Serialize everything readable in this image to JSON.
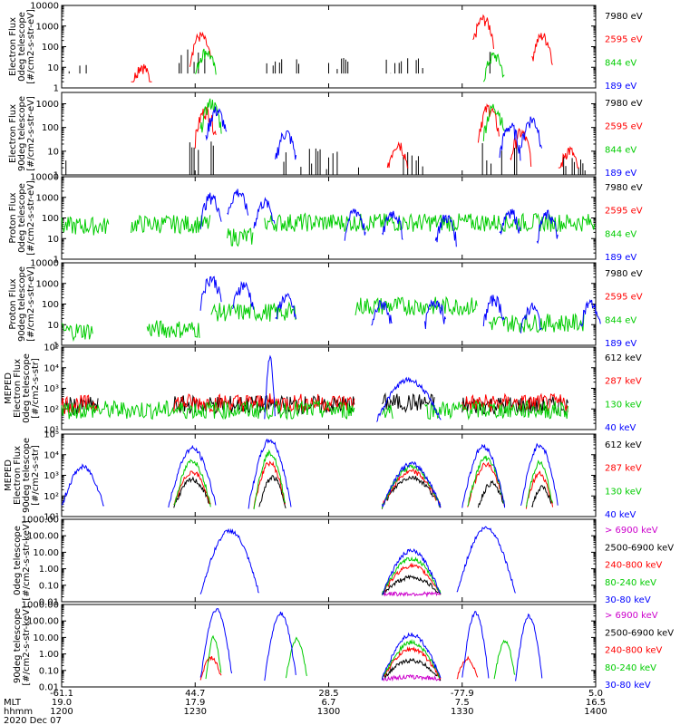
{
  "chart_data": [
    {
      "panel": "electron-0deg",
      "type": "line",
      "ylabel": [
        "Electron Flux",
        "0deg telescope",
        "[#/cm2-s-str-eV]"
      ],
      "yscale": "log",
      "ylim": [
        1,
        10000
      ],
      "yticks": [
        {
          "v": 1,
          "t": "1"
        },
        {
          "v": 10,
          "t": "10"
        },
        {
          "v": 100,
          "t": "100"
        },
        {
          "v": 1000,
          "t": "1000"
        },
        {
          "v": 10000,
          "t": "10000"
        }
      ],
      "series": [
        {
          "name": "7980 eV",
          "color": "#000000",
          "style": "sticks",
          "segments": [
            [
              0.01,
              0.06,
              12
            ],
            [
              0.22,
              0.28,
              70
            ],
            [
              0.38,
              0.46,
              30
            ],
            [
              0.5,
              0.55,
              25
            ],
            [
              0.6,
              0.68,
              25
            ],
            [
              0.79,
              0.82,
              60
            ]
          ],
          "base": 10
        },
        {
          "name": "2595 eV",
          "color": "#ff0000",
          "style": "bursts",
          "segments": [
            [
              0.15,
              16
            ],
            [
              0.26,
              450
            ],
            [
              0.79,
              3000
            ],
            [
              0.9,
              450
            ]
          ]
        },
        {
          "name": "844 eV",
          "color": "#00cc00",
          "style": "bursts",
          "segments": [
            [
              0.27,
              80
            ],
            [
              0.81,
              50
            ]
          ]
        },
        {
          "name": "189 eV",
          "color": "#0000ff",
          "style": "none",
          "segments": []
        }
      ]
    },
    {
      "panel": "electron-90deg",
      "type": "line",
      "ylabel": [
        "Electron Flux",
        "90deg telescope",
        "[#/cm2-s-str-eV]"
      ],
      "yscale": "log",
      "ylim": [
        1,
        3000
      ],
      "yticks": [
        {
          "v": 1,
          "t": "1"
        },
        {
          "v": 10,
          "t": "10"
        },
        {
          "v": 100,
          "t": "100"
        },
        {
          "v": 1000,
          "t": "1000"
        }
      ],
      "series": [
        {
          "name": "7980 eV",
          "color": "#000000",
          "style": "sticks",
          "segments": [
            [
              0.0,
              0.02,
              8
            ],
            [
              0.24,
              0.3,
              30
            ],
            [
              0.4,
              0.56,
              12
            ],
            [
              0.6,
              0.68,
              12
            ],
            [
              0.78,
              0.86,
              30
            ],
            [
              0.94,
              1.0,
              6
            ]
          ],
          "base": 2
        },
        {
          "name": "2595 eV",
          "color": "#ff0000",
          "style": "bursts",
          "segments": [
            [
              0.27,
              700
            ],
            [
              0.8,
              900
            ],
            [
              0.86,
              80
            ],
            [
              0.63,
              30
            ],
            [
              0.95,
              15
            ]
          ]
        },
        {
          "name": "844 eV",
          "color": "#00cc00",
          "style": "bursts",
          "segments": [
            [
              0.28,
              1500
            ],
            [
              0.81,
              1000
            ]
          ]
        },
        {
          "name": "189 eV",
          "color": "#0000ff",
          "style": "bursts",
          "segments": [
            [
              0.29,
              700
            ],
            [
              0.42,
              80
            ],
            [
              0.84,
              150
            ],
            [
              0.88,
              300
            ]
          ]
        }
      ]
    },
    {
      "panel": "proton-0deg",
      "type": "line",
      "ylabel": [
        "Proton Flux",
        "0deg telescope",
        "[#/cm2-s-str-eV]"
      ],
      "yscale": "log",
      "ylim": [
        1,
        10000
      ],
      "yticks": [
        {
          "v": 1,
          "t": "1"
        },
        {
          "v": 10,
          "t": "10"
        },
        {
          "v": 100,
          "t": "100"
        },
        {
          "v": 1000,
          "t": "1000"
        },
        {
          "v": 10000,
          "t": "10000"
        }
      ],
      "series": [
        {
          "name": "7980 eV",
          "color": "#000000",
          "style": "none",
          "segments": []
        },
        {
          "name": "2595 eV",
          "color": "#ff0000",
          "style": "none",
          "segments": []
        },
        {
          "name": "844 eV",
          "color": "#00cc00",
          "style": "noise",
          "segments": [
            [
              0.0,
              0.09,
              40
            ],
            [
              0.13,
              0.28,
              50
            ],
            [
              0.31,
              0.36,
              12
            ],
            [
              0.38,
              1.0,
              60
            ]
          ]
        },
        {
          "name": "189 eV",
          "color": "#0000ff",
          "style": "bursts",
          "segments": [
            [
              0.28,
              1500
            ],
            [
              0.33,
              2500
            ],
            [
              0.38,
              800
            ],
            [
              0.55,
              300
            ],
            [
              0.62,
              250
            ],
            [
              0.72,
              150
            ],
            [
              0.84,
              300
            ],
            [
              0.91,
              200
            ]
          ]
        }
      ]
    },
    {
      "panel": "proton-90deg",
      "type": "line",
      "ylabel": [
        "Proton Flux",
        "90deg telescope",
        "[#/cm2-s-str-eV]"
      ],
      "yscale": "log",
      "ylim": [
        1,
        10000
      ],
      "yticks": [
        {
          "v": 1,
          "t": "1"
        },
        {
          "v": 10,
          "t": "10"
        },
        {
          "v": 100,
          "t": "100"
        },
        {
          "v": 1000,
          "t": "1000"
        },
        {
          "v": 10000,
          "t": "10000"
        }
      ],
      "series": [
        {
          "name": "7980 eV",
          "color": "#000000",
          "style": "none",
          "segments": []
        },
        {
          "name": "2595 eV",
          "color": "#ff0000",
          "style": "none",
          "segments": []
        },
        {
          "name": "844 eV",
          "color": "#00cc00",
          "style": "noise",
          "segments": [
            [
              0.0,
              0.06,
              5
            ],
            [
              0.16,
              0.26,
              6
            ],
            [
              0.28,
              0.44,
              40
            ],
            [
              0.55,
              0.78,
              80
            ],
            [
              0.8,
              0.98,
              12
            ]
          ]
        },
        {
          "name": "189 eV",
          "color": "#0000ff",
          "style": "bursts",
          "segments": [
            [
              0.28,
              2500
            ],
            [
              0.34,
              1200
            ],
            [
              0.42,
              300
            ],
            [
              0.6,
              150
            ],
            [
              0.7,
              200
            ],
            [
              0.81,
              250
            ],
            [
              0.88,
              100
            ],
            [
              0.99,
              150
            ]
          ]
        }
      ]
    },
    {
      "panel": "meped-electron-0deg",
      "type": "line",
      "ylabel": [
        "MEPED",
        "Electron Flux",
        "0deg telescope",
        "[#/cm2-s-str]"
      ],
      "yscale": "log",
      "ylim": [
        10,
        100000
      ],
      "yticks": [
        {
          "v": 10,
          "t": "10¹"
        },
        {
          "v": 100,
          "t": "10²"
        },
        {
          "v": 1000,
          "t": "10³"
        },
        {
          "v": 10000,
          "t": "10⁴"
        },
        {
          "v": 100000,
          "t": "10⁵"
        }
      ],
      "series": [
        {
          "name": "612 keV",
          "color": "#000000",
          "style": "noise",
          "segments": [
            [
              0.0,
              0.07,
              140
            ],
            [
              0.21,
              0.55,
              160
            ],
            [
              0.6,
              0.7,
              200
            ],
            [
              0.75,
              0.95,
              150
            ]
          ]
        },
        {
          "name": "287 keV",
          "color": "#ff0000",
          "style": "noise",
          "segments": [
            [
              0.0,
              0.07,
              170
            ],
            [
              0.21,
              0.55,
              200
            ],
            [
              0.75,
              0.95,
              190
            ]
          ]
        },
        {
          "name": "130 keV",
          "color": "#00cc00",
          "style": "noise",
          "segments": [
            [
              0.0,
              0.55,
              90
            ],
            [
              0.6,
              0.62,
              90
            ],
            [
              0.68,
              0.95,
              90
            ]
          ]
        },
        {
          "name": "40 keV",
          "color": "#0000ff",
          "style": "hump",
          "segments": [
            [
              0.38,
              0.4,
              30000
            ],
            [
              0.59,
              0.71,
              2500
            ]
          ]
        }
      ]
    },
    {
      "panel": "meped-electron-90deg",
      "type": "line",
      "ylabel": [
        "MEPED",
        "Electron Flux",
        "90deg telescope",
        "[#/cm2-s-str]"
      ],
      "yscale": "log",
      "ylim": [
        10,
        100000
      ],
      "yticks": [
        {
          "v": 10,
          "t": "10¹"
        },
        {
          "v": 100,
          "t": "10²"
        },
        {
          "v": 1000,
          "t": "10³"
        },
        {
          "v": 10000,
          "t": "10⁴"
        },
        {
          "v": 100000,
          "t": "10⁵"
        }
      ],
      "series": [
        {
          "name": "612 keV",
          "color": "#000000",
          "style": "hump",
          "segments": [
            [
              0.21,
              0.28,
              600
            ],
            [
              0.37,
              0.42,
              800
            ],
            [
              0.6,
              0.71,
              800
            ],
            [
              0.78,
              0.83,
              400
            ],
            [
              0.88,
              0.92,
              250
            ]
          ]
        },
        {
          "name": "287 keV",
          "color": "#ff0000",
          "style": "hump",
          "segments": [
            [
              0.21,
              0.28,
              1500
            ],
            [
              0.36,
              0.42,
              4000
            ],
            [
              0.6,
              0.71,
              1500
            ],
            [
              0.76,
              0.83,
              3500
            ],
            [
              0.87,
              0.92,
              1200
            ]
          ]
        },
        {
          "name": "130 keV",
          "color": "#00cc00",
          "style": "hump",
          "segments": [
            [
              0.21,
              0.28,
              5000
            ],
            [
              0.36,
              0.42,
              12000
            ],
            [
              0.6,
              0.71,
              2500
            ],
            [
              0.76,
              0.83,
              7000
            ],
            [
              0.87,
              0.92,
              4000
            ]
          ]
        },
        {
          "name": "40 keV",
          "color": "#0000ff",
          "style": "hump",
          "segments": [
            [
              0.0,
              0.08,
              2500
            ],
            [
              0.2,
              0.29,
              20000
            ],
            [
              0.35,
              0.43,
              50000
            ],
            [
              0.6,
              0.71,
              3500
            ],
            [
              0.75,
              0.83,
              25000
            ],
            [
              0.86,
              0.93,
              30000
            ]
          ]
        }
      ]
    },
    {
      "panel": "meped-proton-0deg",
      "type": "line",
      "ylabel": [
        "0deg telescope",
        "[#/cm2-s-str-keV]"
      ],
      "yscale": "log",
      "ylim": [
        0.01,
        1000
      ],
      "yticks": [
        {
          "v": 0.01,
          "t": "0.01"
        },
        {
          "v": 0.1,
          "t": "0.10"
        },
        {
          "v": 1,
          "t": "1.00"
        },
        {
          "v": 10,
          "t": "10.00"
        },
        {
          "v": 100,
          "t": "100.00"
        },
        {
          "v": 1000,
          "t": "1000.00"
        }
      ],
      "series": [
        {
          "name": "> 6900 keV",
          "color": "#cc00cc",
          "style": "hump",
          "segments": [
            [
              0.6,
              0.71,
              0.03
            ]
          ]
        },
        {
          "name": "2500-6900 keV",
          "color": "#000000",
          "style": "hump",
          "segments": [
            [
              0.6,
              0.71,
              0.3
            ]
          ]
        },
        {
          "name": "240-800 keV",
          "color": "#ff0000",
          "style": "hump",
          "segments": [
            [
              0.6,
              0.71,
              1.5
            ]
          ]
        },
        {
          "name": "80-240 keV",
          "color": "#00cc00",
          "style": "hump",
          "segments": [
            [
              0.6,
              0.71,
              4
            ]
          ]
        },
        {
          "name": "30-80 keV",
          "color": "#0000ff",
          "style": "hump",
          "segments": [
            [
              0.26,
              0.37,
              200
            ],
            [
              0.74,
              0.85,
              300
            ],
            [
              0.6,
              0.71,
              12
            ]
          ]
        }
      ]
    },
    {
      "panel": "meped-proton-90deg",
      "type": "line",
      "ylabel": [
        "90deg telescope",
        "[#/cm2-s-str-keV]"
      ],
      "yscale": "log",
      "ylim": [
        0.01,
        1000
      ],
      "yticks": [
        {
          "v": 0.01,
          "t": "0.01"
        },
        {
          "v": 0.1,
          "t": "0.10"
        },
        {
          "v": 1,
          "t": "1.00"
        },
        {
          "v": 10,
          "t": "10.00"
        },
        {
          "v": 100,
          "t": "100.00"
        },
        {
          "v": 1000,
          "t": "1000.00"
        }
      ],
      "series": [
        {
          "name": "> 6900 keV",
          "color": "#cc00cc",
          "style": "hump",
          "segments": [
            [
              0.6,
              0.71,
              0.04
            ]
          ]
        },
        {
          "name": "2500-6900 keV",
          "color": "#000000",
          "style": "hump",
          "segments": [
            [
              0.6,
              0.71,
              0.4
            ]
          ]
        },
        {
          "name": "240-800 keV",
          "color": "#ff0000",
          "style": "hump",
          "segments": [
            [
              0.6,
              0.71,
              2
            ],
            [
              0.26,
              0.3,
              0.6
            ],
            [
              0.74,
              0.78,
              0.5
            ]
          ]
        },
        {
          "name": "80-240 keV",
          "color": "#00cc00",
          "style": "hump",
          "segments": [
            [
              0.6,
              0.71,
              5
            ],
            [
              0.27,
              0.3,
              10
            ],
            [
              0.42,
              0.46,
              8
            ],
            [
              0.81,
              0.85,
              6
            ]
          ]
        },
        {
          "name": "30-80 keV",
          "color": "#0000ff",
          "style": "hump",
          "segments": [
            [
              0.26,
              0.32,
              500
            ],
            [
              0.38,
              0.44,
              300
            ],
            [
              0.6,
              0.71,
              15
            ],
            [
              0.75,
              0.8,
              300
            ],
            [
              0.85,
              0.9,
              200
            ]
          ]
        }
      ]
    }
  ],
  "x_axis": {
    "rows": [
      {
        "label": "",
        "values": [
          "-61.1",
          "44.7",
          "28.5",
          "-77.9",
          "5.0"
        ]
      },
      {
        "label": "MLT",
        "values": [
          "19.0",
          "17.9",
          "6.7",
          "7.5",
          "16.5"
        ]
      },
      {
        "label": "hhmm",
        "values": [
          "1200",
          "1230",
          "1300",
          "1330",
          "1400"
        ]
      }
    ],
    "date": "2020 Dec 07"
  }
}
